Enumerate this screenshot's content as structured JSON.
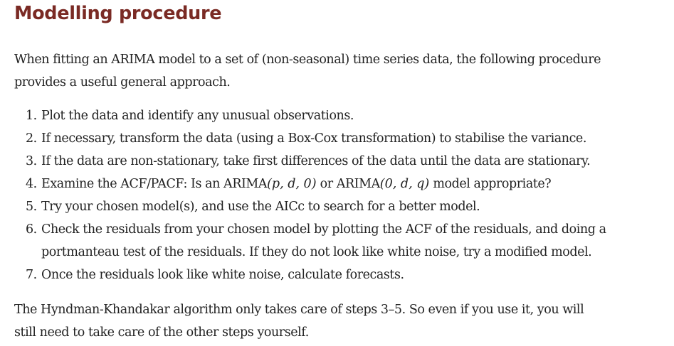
{
  "heading": "Modelling procedure",
  "intro": {
    "line1": "When fitting an ARIMA model to a set of (non-seasonal) time series data, the following procedure",
    "line2": "provides a useful general approach."
  },
  "colors": {
    "heading": "#7a2a24",
    "text": "#222222"
  },
  "steps": [
    {
      "number": "1.",
      "text": "Plot the data and identify any unusual observations."
    },
    {
      "number": "2.",
      "text": "If necessary, transform the data (using a Box-Cox transformation) to stabilise the variance."
    },
    {
      "number": "3.",
      "text": "If the data are non-stationary, take first differences of the data until the data are stationary."
    },
    {
      "number": "4.",
      "text_before": "Examine the ACF/PACF: Is an ARIMA",
      "math1": "(p, d, 0)",
      "text_middle": " or ARIMA",
      "math2": "(0, d, q)",
      "text_after": " model appropriate?"
    },
    {
      "number": "5.",
      "text": "Try your chosen model(s), and use the AICc to search for a better model."
    },
    {
      "number": "6.",
      "line1": "Check the residuals from your chosen model by plotting the ACF of the residuals, and doing a",
      "line2": "portmanteau test of the residuals. If they do not look like white noise, try a modified model."
    },
    {
      "number": "7.",
      "text": "Once the residuals look like white noise, calculate forecasts."
    }
  ],
  "outro": {
    "line1": "The Hyndman-Khandakar algorithm only takes care of steps 3–5. So even if you use it, you will",
    "line2": "still need to take care of the other steps yourself."
  }
}
